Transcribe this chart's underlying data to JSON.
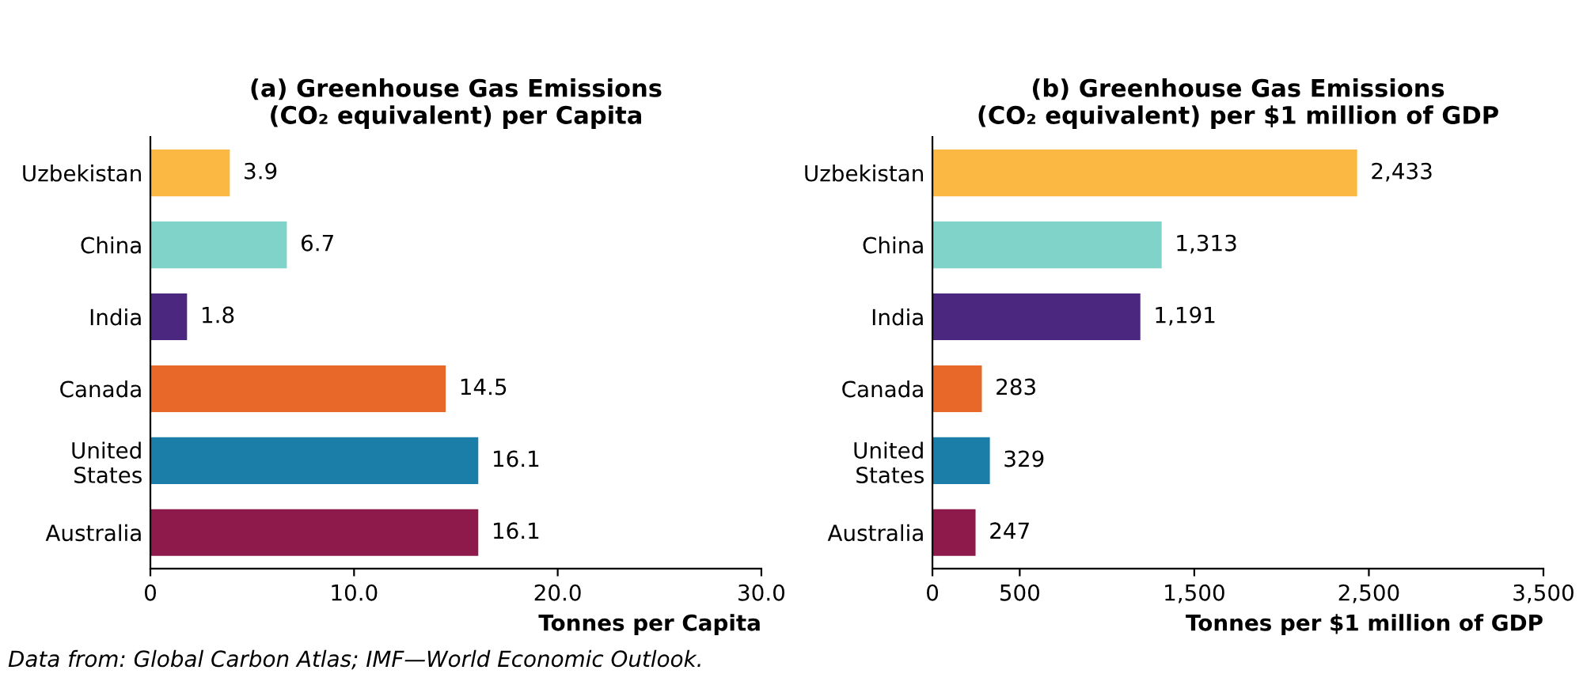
{
  "chart_data": [
    {
      "type": "bar",
      "orientation": "horizontal",
      "title": "(a) Greenhouse Gas Emissions\n(CO₂ equivalent) per Capita",
      "xlabel": "Tonnes per Capita",
      "categories": [
        "Uzbekistan",
        "China",
        "India",
        "Canada",
        "United\nStates",
        "Australia"
      ],
      "values": [
        3.9,
        6.7,
        1.8,
        14.5,
        16.1,
        16.1
      ],
      "value_labels": [
        "3.9",
        "6.7",
        "1.8",
        "14.5",
        "16.1",
        "16.1"
      ],
      "colors": [
        "#fbb843",
        "#7fd3c8",
        "#4b2780",
        "#e8682a",
        "#1a7ea8",
        "#8e1a4c"
      ],
      "xlim": [
        0,
        30
      ],
      "xticks": [
        0,
        {
          "value": 10,
          "label": "10.0"
        },
        {
          "value": 20,
          "label": "20.0"
        },
        {
          "value": 30,
          "label": "30.0"
        }
      ],
      "grid": false,
      "legend": false,
      "annotations": [
        "Data from: Global Carbon Atlas; IMF—World Economic Outlook."
      ]
    },
    {
      "type": "bar",
      "orientation": "horizontal",
      "title": "(b) Greenhouse Gas Emissions\n(CO₂ equivalent) per $1 million of GDP",
      "xlabel": "Tonnes per $1 million of GDP",
      "categories": [
        "Uzbekistan",
        "China",
        "India",
        "Canada",
        "United\nStates",
        "Australia"
      ],
      "values": [
        2433,
        1313,
        1191,
        283,
        329,
        247
      ],
      "value_labels": [
        "2,433",
        "1,313",
        "1,191",
        "283",
        "329",
        "247"
      ],
      "colors": [
        "#fbb843",
        "#7fd3c8",
        "#4b2780",
        "#e8682a",
        "#1a7ea8",
        "#8e1a4c"
      ],
      "xlim": [
        0,
        3500
      ],
      "xticks": [
        0,
        500,
        {
          "value": 1500,
          "label": "1,500"
        },
        {
          "value": 2500,
          "label": "2,500"
        },
        {
          "value": 3500,
          "label": "3,500"
        }
      ],
      "grid": false,
      "legend": false
    }
  ]
}
